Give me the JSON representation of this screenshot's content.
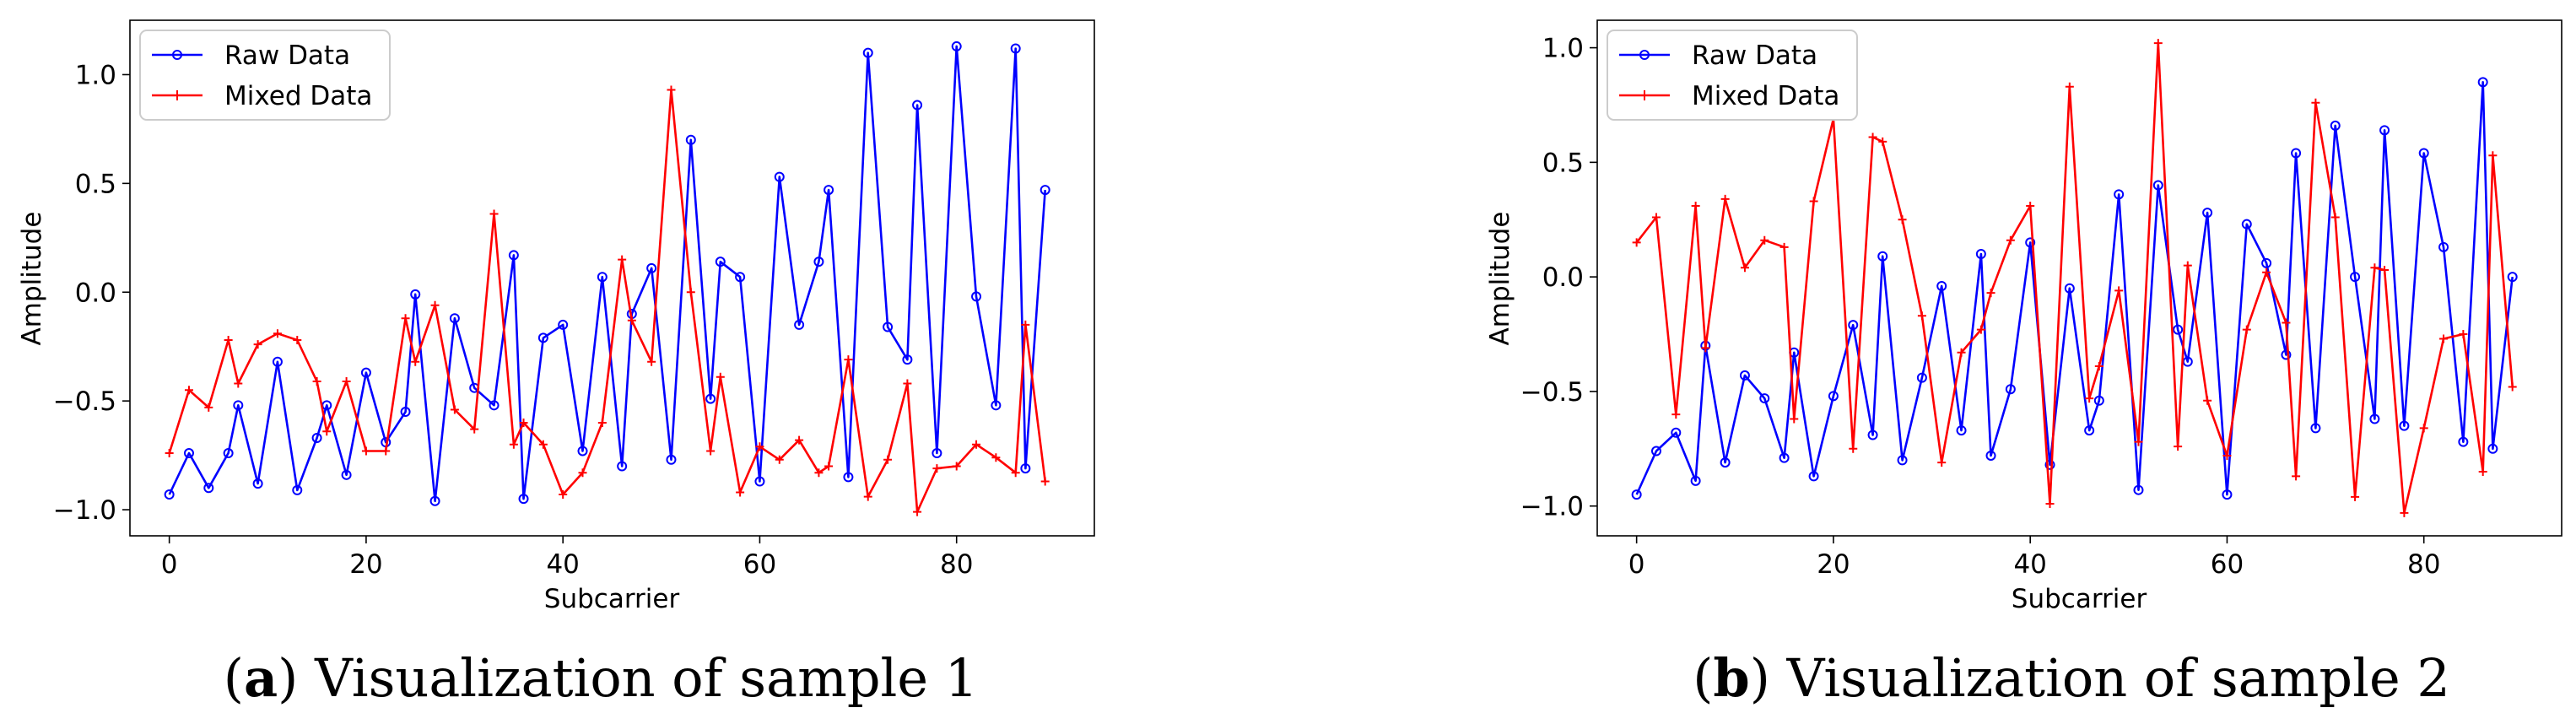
{
  "chart_data": [
    {
      "type": "line",
      "caption_letter": "a",
      "caption_text": "Visualization of sample 1",
      "xlabel": "Subcarrier",
      "ylabel": "Amplitude",
      "xlim": [
        -4,
        94
      ],
      "ylim": [
        -1.12,
        1.25
      ],
      "xticks": [
        0,
        20,
        40,
        60,
        80
      ],
      "yticks": [
        -1.0,
        -0.5,
        0.0,
        0.5,
        1.0
      ],
      "ytick_labels": [
        "−1.0",
        "−0.5",
        "0.0",
        "0.5",
        "1.0"
      ],
      "legend_position": "upper-left",
      "x": [
        0,
        2,
        4,
        6,
        7,
        9,
        11,
        13,
        15,
        16,
        18,
        20,
        22,
        24,
        25,
        27,
        29,
        31,
        33,
        35,
        36,
        38,
        40,
        42,
        44,
        46,
        47,
        49,
        51,
        53,
        55,
        56,
        58,
        60,
        62,
        64,
        66,
        67,
        69,
        71,
        73,
        75,
        76,
        78,
        80,
        82,
        84,
        86,
        87,
        89
      ],
      "series": [
        {
          "name": "Raw Data",
          "color": "#0000ff",
          "marker": "circle",
          "values": [
            -0.93,
            -0.74,
            -0.9,
            -0.74,
            -0.52,
            -0.88,
            -0.32,
            -0.91,
            -0.67,
            -0.52,
            -0.84,
            -0.37,
            -0.69,
            -0.55,
            -0.01,
            -0.96,
            -0.12,
            -0.44,
            -0.52,
            0.17,
            -0.95,
            -0.21,
            -0.15,
            -0.73,
            0.07,
            -0.8,
            -0.1,
            0.11,
            -0.77,
            0.7,
            -0.49,
            0.14,
            0.07,
            -0.87,
            0.53,
            -0.15,
            0.14,
            0.47,
            -0.85,
            1.1,
            -0.16,
            -0.31,
            0.86,
            -0.74,
            1.13,
            -0.02,
            -0.52,
            1.12,
            -0.81,
            0.47
          ]
        },
        {
          "name": "Mixed Data",
          "color": "#ff0000",
          "marker": "plus",
          "values": [
            -0.74,
            -0.45,
            -0.53,
            -0.22,
            -0.42,
            -0.24,
            -0.19,
            -0.22,
            -0.41,
            -0.64,
            -0.41,
            -0.73,
            -0.73,
            -0.12,
            -0.32,
            -0.06,
            -0.54,
            -0.63,
            0.36,
            -0.7,
            -0.6,
            -0.7,
            -0.93,
            -0.83,
            -0.6,
            0.15,
            -0.13,
            -0.32,
            0.93,
            0.0,
            -0.73,
            -0.39,
            -0.92,
            -0.71,
            -0.77,
            -0.68,
            -0.83,
            -0.8,
            -0.31,
            -0.94,
            -0.77,
            -0.42,
            -1.01,
            -0.81,
            -0.8,
            -0.7,
            -0.76,
            -0.83,
            -0.15,
            -0.87
          ]
        }
      ]
    },
    {
      "type": "line",
      "caption_letter": "b",
      "caption_text": "Visualization of sample 2",
      "xlabel": "Subcarrier",
      "ylabel": "Amplitude",
      "xlim": [
        -4,
        94
      ],
      "ylim": [
        -1.13,
        1.12
      ],
      "xticks": [
        0,
        20,
        40,
        60,
        80
      ],
      "yticks": [
        -1.0,
        -0.5,
        0.0,
        0.5,
        1.0
      ],
      "ytick_labels": [
        "−1.0",
        "−0.5",
        "0.0",
        "0.5",
        "1.0"
      ],
      "legend_position": "upper-left",
      "x": [
        0,
        2,
        4,
        6,
        7,
        9,
        11,
        13,
        15,
        16,
        18,
        20,
        22,
        24,
        25,
        27,
        29,
        31,
        33,
        35,
        36,
        38,
        40,
        42,
        44,
        46,
        47,
        49,
        51,
        53,
        55,
        56,
        58,
        60,
        62,
        64,
        66,
        67,
        69,
        71,
        73,
        75,
        76,
        78,
        80,
        82,
        84,
        86,
        87,
        89
      ],
      "series": [
        {
          "name": "Raw Data",
          "color": "#0000ff",
          "marker": "circle",
          "values": [
            -0.95,
            -0.76,
            -0.68,
            -0.89,
            -0.3,
            -0.81,
            -0.43,
            -0.53,
            -0.79,
            -0.33,
            -0.87,
            -0.52,
            -0.21,
            -0.69,
            0.09,
            -0.8,
            -0.44,
            -0.04,
            -0.67,
            0.1,
            -0.78,
            -0.49,
            0.15,
            -0.82,
            -0.05,
            -0.67,
            -0.54,
            0.36,
            -0.93,
            0.4,
            -0.23,
            -0.37,
            0.28,
            -0.95,
            0.23,
            0.06,
            -0.34,
            0.54,
            -0.66,
            0.66,
            0.0,
            -0.62,
            0.64,
            -0.65,
            0.54,
            0.13,
            -0.72,
            0.85,
            -0.75,
            0.0
          ]
        },
        {
          "name": "Mixed Data",
          "color": "#ff0000",
          "marker": "plus",
          "values": [
            0.15,
            0.26,
            -0.6,
            0.31,
            -0.31,
            0.34,
            0.04,
            0.16,
            0.13,
            -0.62,
            0.33,
            0.69,
            -0.75,
            0.61,
            0.59,
            0.25,
            -0.17,
            -0.81,
            -0.33,
            -0.23,
            -0.07,
            0.16,
            0.31,
            -0.99,
            0.83,
            -0.53,
            -0.39,
            -0.06,
            -0.72,
            1.02,
            -0.74,
            0.05,
            -0.54,
            -0.78,
            -0.23,
            0.02,
            -0.2,
            -0.87,
            0.76,
            0.26,
            -0.96,
            0.04,
            0.03,
            -1.03,
            -0.66,
            -0.27,
            -0.25,
            -0.85,
            0.53,
            -0.48
          ]
        }
      ]
    }
  ]
}
